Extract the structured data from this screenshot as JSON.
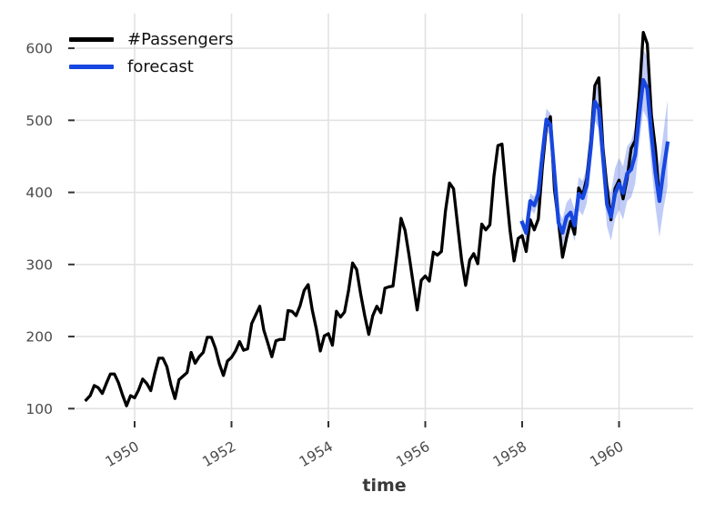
{
  "chart_data": {
    "type": "line",
    "title": "",
    "xlabel": "time",
    "ylabel": "",
    "grid": true,
    "legend_position": "upper-left",
    "x_ticks": [
      1950,
      1952,
      1954,
      1956,
      1958,
      1960
    ],
    "y_ticks": [
      100,
      200,
      300,
      400,
      500,
      600
    ],
    "xlim": [
      1948.78,
      1961.53
    ],
    "ylim": [
      84,
      648
    ],
    "series": [
      {
        "name": "#Passengers",
        "color": "#000000",
        "width": 3.3,
        "start_x": 1949.0,
        "step_x": 0.0833333,
        "values": [
          112,
          118,
          132,
          129,
          121,
          135,
          148,
          148,
          136,
          119,
          104,
          118,
          115,
          126,
          141,
          135,
          125,
          149,
          170,
          170,
          158,
          133,
          114,
          140,
          145,
          150,
          178,
          163,
          172,
          178,
          199,
          199,
          184,
          162,
          146,
          166,
          171,
          180,
          193,
          181,
          183,
          218,
          230,
          242,
          209,
          191,
          172,
          194,
          196,
          196,
          236,
          235,
          229,
          243,
          264,
          272,
          237,
          211,
          180,
          201,
          204,
          188,
          235,
          227,
          234,
          264,
          302,
          293,
          259,
          229,
          203,
          229,
          242,
          233,
          267,
          269,
          270,
          315,
          364,
          347,
          312,
          274,
          237,
          278,
          284,
          277,
          317,
          313,
          318,
          374,
          413,
          405,
          355,
          306,
          271,
          306,
          315,
          301,
          356,
          348,
          355,
          422,
          465,
          467,
          404,
          347,
          305,
          336,
          340,
          318,
          362,
          348,
          363,
          435,
          491,
          505,
          404,
          359,
          310,
          337,
          360,
          342,
          406,
          396,
          420,
          472,
          548,
          559,
          463,
          407,
          362,
          405,
          417,
          391,
          419,
          461,
          472,
          535,
          622,
          606,
          508,
          461,
          390,
          432
        ]
      },
      {
        "name": "forecast",
        "color": "#1747e0",
        "width": 4.2,
        "start_x": 1958.0,
        "step_x": 0.0833333,
        "values": [
          358,
          344,
          388,
          382,
          398,
          452,
          501,
          494,
          426,
          358,
          344,
          366,
          372,
          354,
          398,
          392,
          410,
          462,
          526,
          516,
          450,
          384,
          366,
          398,
          412,
          399,
          426,
          432,
          452,
          508,
          556,
          544,
          482,
          428,
          388,
          430,
          468
        ],
        "band": {
          "color": "rgba(45,85,230,0.30)",
          "deltas": [
            8,
            10,
            11,
            12,
            13,
            14,
            15,
            16,
            17,
            18,
            19,
            20,
            21,
            22,
            23,
            24,
            25,
            26,
            27,
            28,
            29,
            31,
            33,
            35,
            36,
            37,
            38,
            39,
            40,
            41,
            42,
            43,
            45,
            47,
            50,
            53,
            60
          ]
        }
      }
    ],
    "style": {
      "grid_color": "#e2e2e2",
      "tick_color": "#333333",
      "tick_label_color": "#4b4b4b"
    }
  },
  "legend": {
    "items": [
      {
        "label": "#Passengers",
        "color": "#000000"
      },
      {
        "label": "forecast",
        "color": "#1747e0"
      }
    ]
  }
}
